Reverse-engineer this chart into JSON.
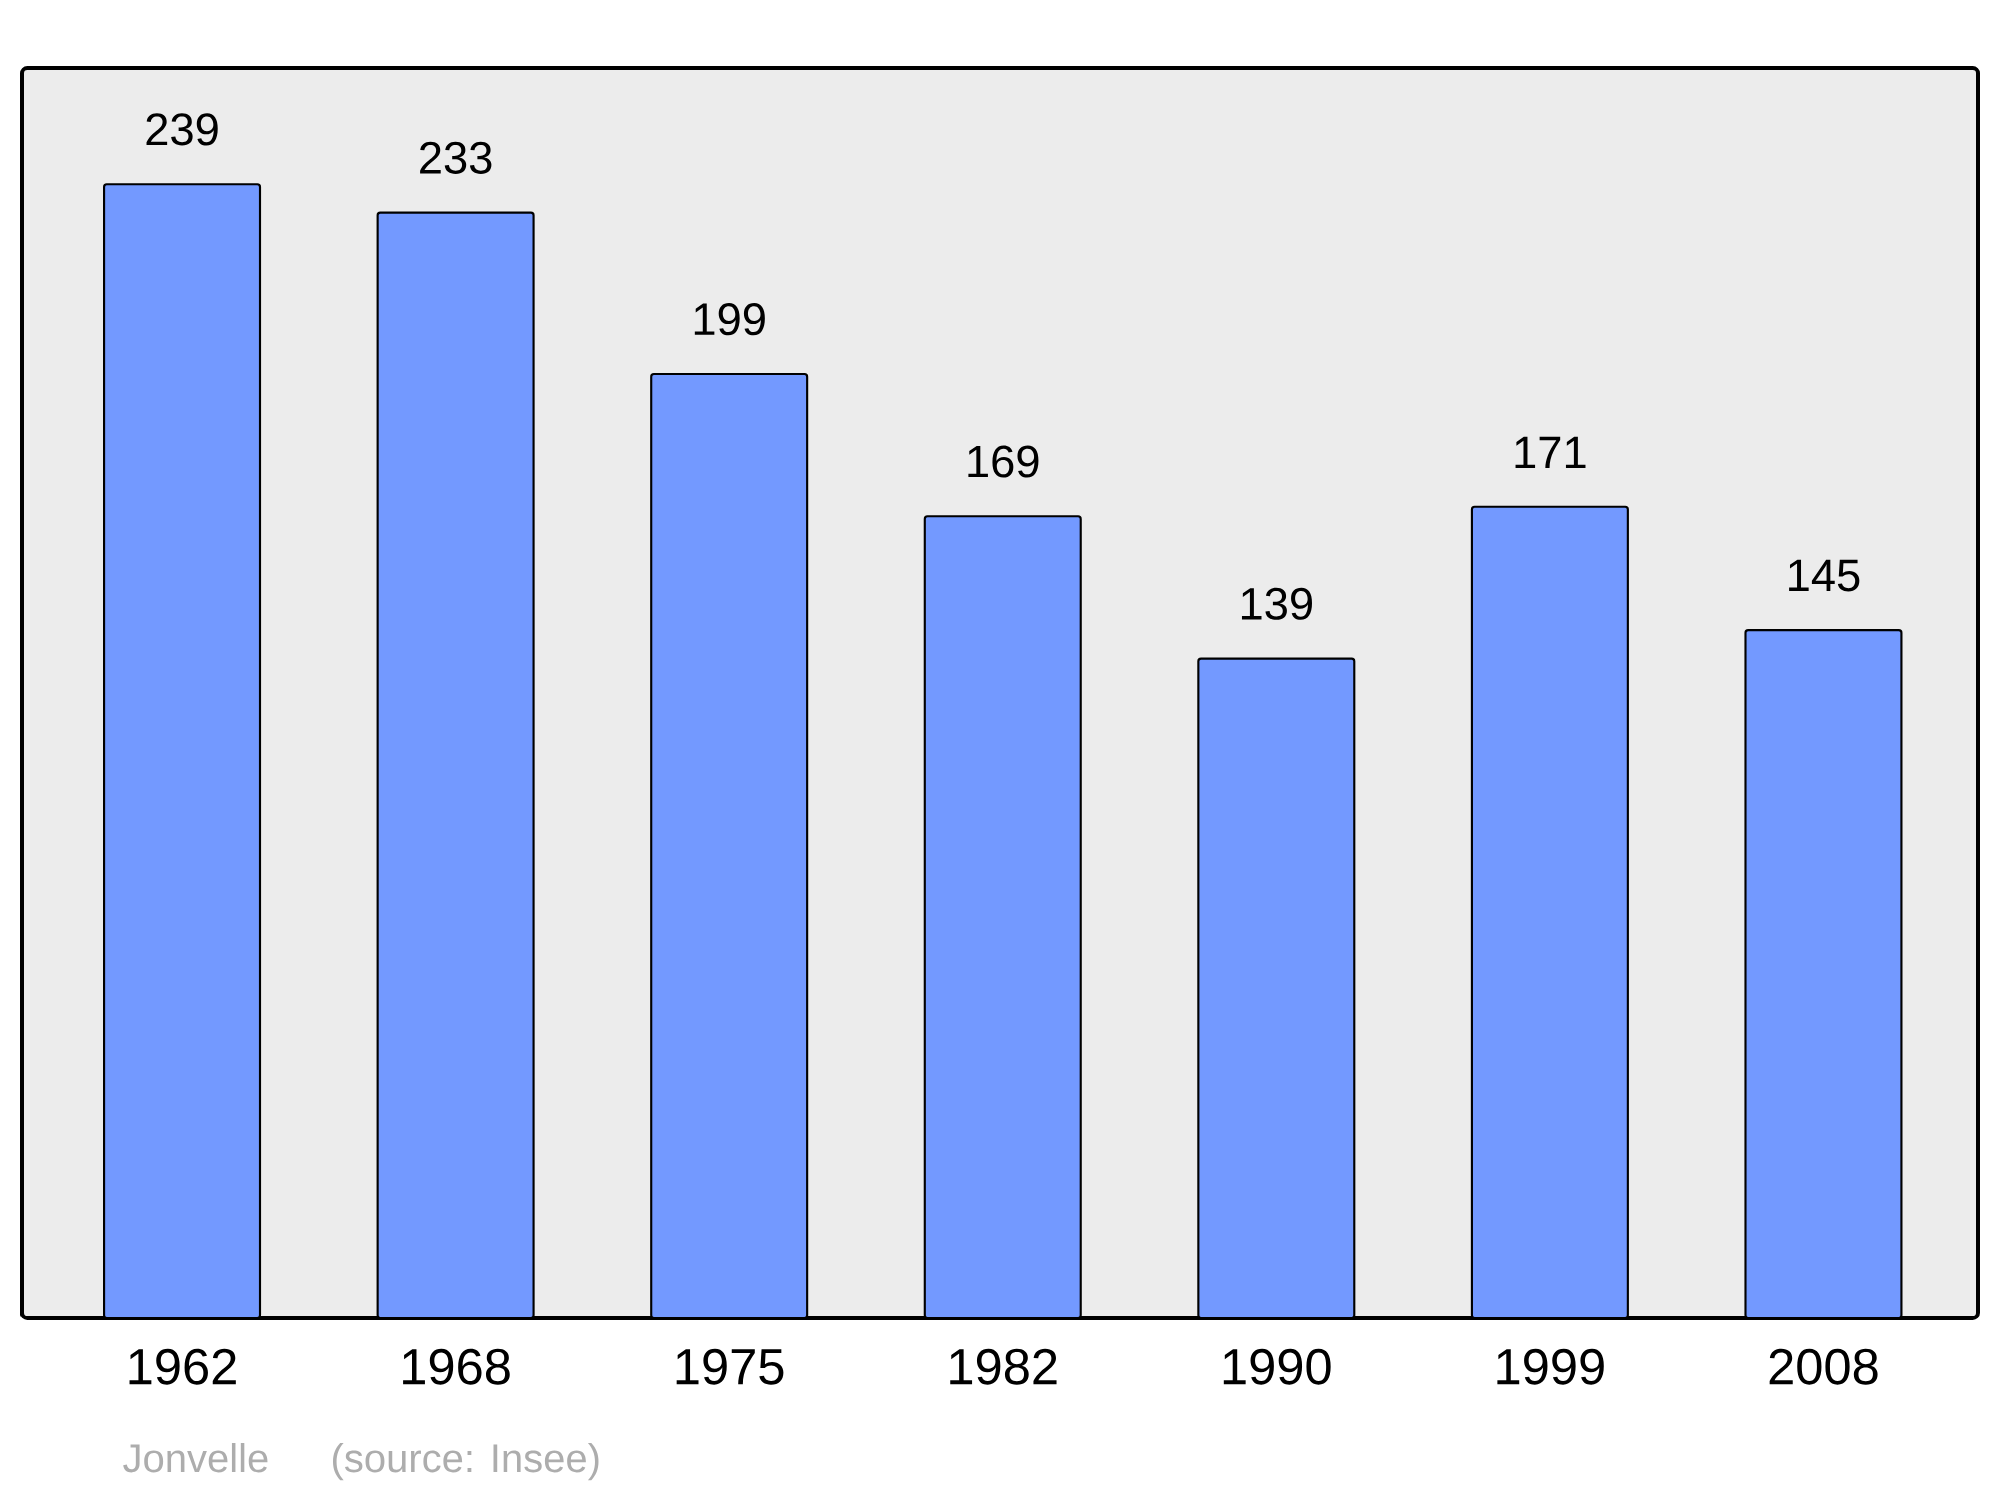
{
  "chart_data": {
    "type": "bar",
    "categories": [
      "1962",
      "1968",
      "1975",
      "1982",
      "1990",
      "1999",
      "2008"
    ],
    "values": [
      239,
      233,
      199,
      169,
      139,
      171,
      145
    ],
    "color": "#7399ff",
    "data_labels": true,
    "ylim": [
      0,
      263.5
    ],
    "annotations": [
      "Jonvelle",
      "(source: Insee)"
    ]
  }
}
